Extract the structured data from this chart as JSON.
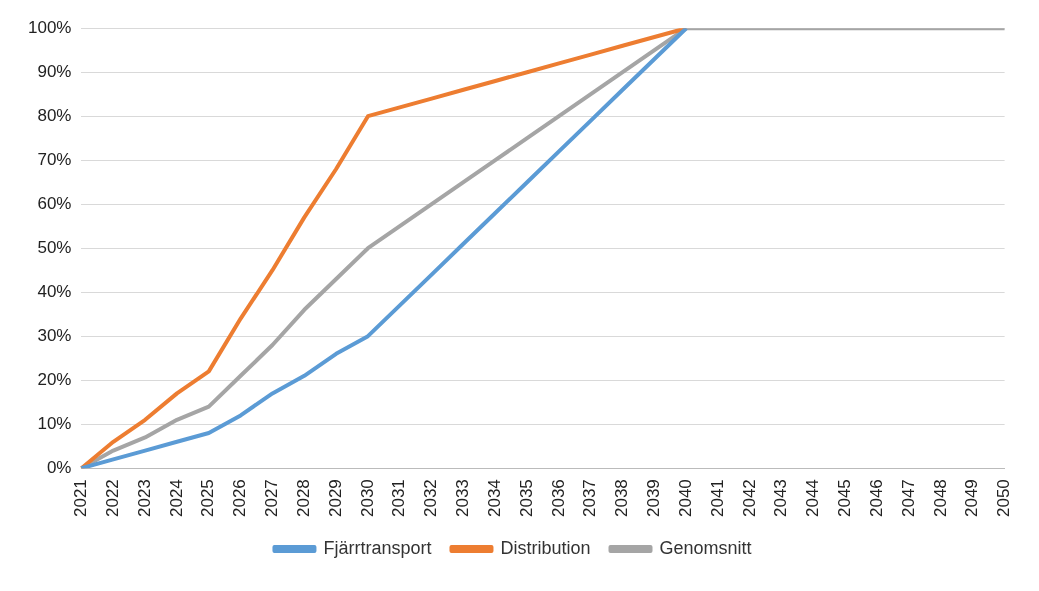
{
  "chart_data": {
    "type": "line",
    "categories": [
      "2021",
      "2022",
      "2023",
      "2024",
      "2025",
      "2026",
      "2027",
      "2028",
      "2029",
      "2030",
      "2031",
      "2032",
      "2033",
      "2034",
      "2035",
      "2036",
      "2037",
      "2038",
      "2039",
      "2040",
      "2041",
      "2042",
      "2043",
      "2044",
      "2045",
      "2046",
      "2047",
      "2048",
      "2049",
      "2050"
    ],
    "series": [
      {
        "name": "Fjärrtransport",
        "color": "#5b9bd5",
        "values": [
          0,
          2,
          4,
          6,
          8,
          12,
          17,
          21,
          26,
          30,
          37,
          44,
          51,
          58,
          65,
          72,
          79,
          86,
          93,
          100,
          null,
          null,
          null,
          null,
          null,
          null,
          null,
          null,
          null,
          null
        ]
      },
      {
        "name": "Distribution",
        "color": "#ed7d31",
        "values": [
          0,
          6,
          11,
          17,
          22,
          34,
          45,
          57,
          68,
          80,
          82,
          84,
          86,
          88,
          90,
          92,
          94,
          96,
          98,
          100,
          null,
          null,
          null,
          null,
          null,
          null,
          null,
          null,
          null,
          null
        ]
      },
      {
        "name": "Genomsnitt",
        "color": "#a5a5a5",
        "values": [
          0,
          4,
          7,
          11,
          14,
          21,
          28,
          36,
          43,
          50,
          55,
          60,
          65,
          70,
          75,
          80,
          85,
          90,
          95,
          100,
          100,
          100,
          100,
          100,
          100,
          100,
          100,
          100,
          100,
          100
        ]
      }
    ],
    "ylim": [
      0,
      100
    ],
    "yticks": [
      {
        "value": 0,
        "label": "0%"
      },
      {
        "value": 10,
        "label": "10%"
      },
      {
        "value": 20,
        "label": "20%"
      },
      {
        "value": 30,
        "label": "30%"
      },
      {
        "value": 40,
        "label": "40%"
      },
      {
        "value": 50,
        "label": "50%"
      },
      {
        "value": 60,
        "label": "60%"
      },
      {
        "value": 70,
        "label": "70%"
      },
      {
        "value": 80,
        "label": "80%"
      },
      {
        "value": 90,
        "label": "90%"
      },
      {
        "value": 100,
        "label": "100%"
      }
    ],
    "grid": "y",
    "legend": "bottom",
    "marker": "none",
    "line_style": "solid"
  }
}
